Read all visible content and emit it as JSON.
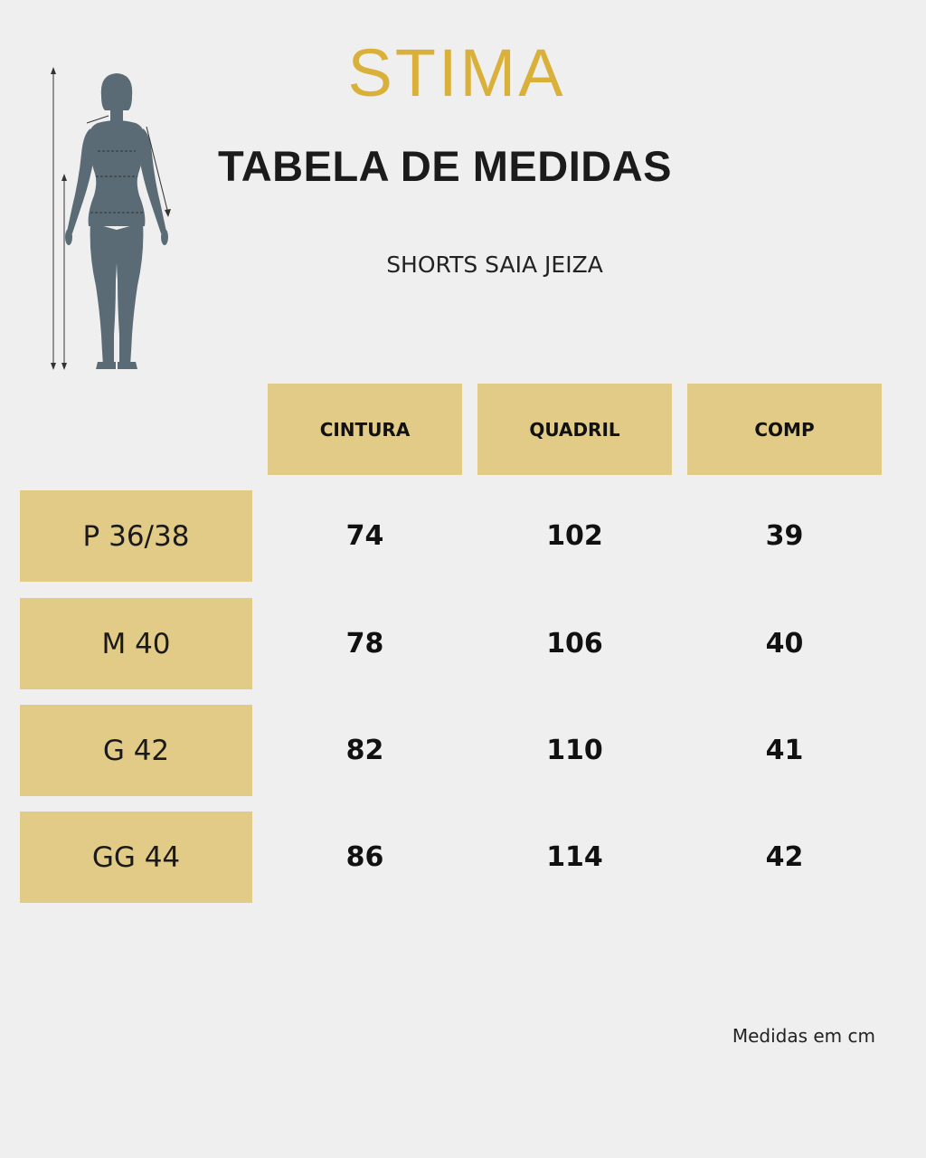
{
  "brand": {
    "logo_text": "STIMA",
    "color": "#d9b13a"
  },
  "title": "TABELA DE MEDIDAS",
  "subtitle": "SHORTS SAIA JEIZA",
  "illustration": {
    "icon": "female-body-measurement-icon"
  },
  "table": {
    "header_color": "#e2cb87",
    "columns": [
      "CINTURA",
      "QUADRIL",
      "COMP"
    ],
    "rows": [
      {
        "size": "P 36/38",
        "values": [
          "74",
          "102",
          "39"
        ]
      },
      {
        "size": "M 40",
        "values": [
          "78",
          "106",
          "40"
        ]
      },
      {
        "size": "G 42",
        "values": [
          "82",
          "110",
          "41"
        ]
      },
      {
        "size": "GG 44",
        "values": [
          "86",
          "114",
          "42"
        ]
      }
    ]
  },
  "footnote": "Medidas em cm"
}
